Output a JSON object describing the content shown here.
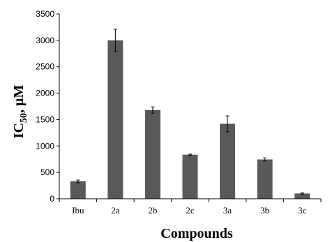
{
  "chart_data": {
    "type": "bar",
    "title": "",
    "xlabel": "Compounds",
    "ylabel": {
      "main": "IC",
      "subscript": "50",
      "suffix": ", µM"
    },
    "categories": [
      "Ibu",
      "2a",
      "2b",
      "2c",
      "3a",
      "3b",
      "3c"
    ],
    "series": [
      {
        "values": [
          330,
          3000,
          1680,
          835,
          1420,
          745,
          100
        ],
        "errors": [
          25,
          210,
          60,
          10,
          150,
          30,
          10
        ],
        "color": "#595959"
      }
    ],
    "ylim": [
      0,
      3500
    ],
    "yticks": [
      "0",
      "500",
      "1000",
      "1500",
      "2000",
      "2500",
      "3000",
      "3500"
    ],
    "grid": false,
    "legend": "none"
  }
}
